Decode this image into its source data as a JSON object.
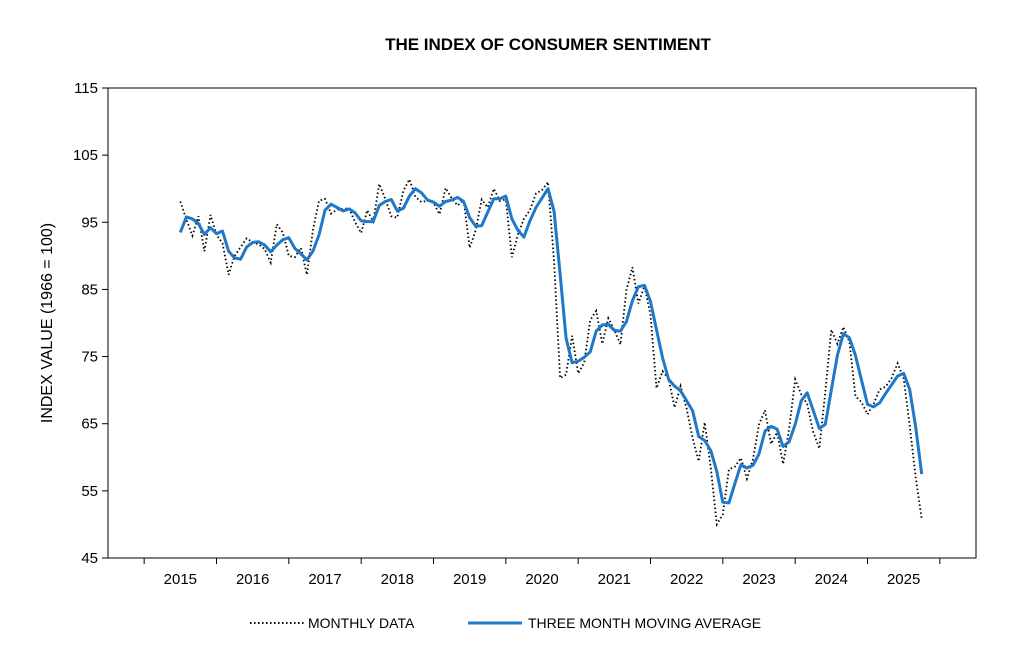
{
  "chart_data": {
    "type": "line",
    "title": "THE INDEX OF CONSUMER SENTIMENT",
    "ylabel": "INDEX VALUE (1966 = 100)",
    "xlabel": "",
    "ylim": [
      45,
      115
    ],
    "yticks": [
      45,
      55,
      65,
      75,
      85,
      95,
      105,
      115
    ],
    "xlim": [
      2014,
      2026
    ],
    "xticks": [
      2015,
      2016,
      2017,
      2018,
      2019,
      2020,
      2021,
      2022,
      2023,
      2024,
      2025
    ],
    "grid": false,
    "legend_position": "bottom",
    "colors": {
      "monthly": "#000000",
      "average": "#1f78c8"
    },
    "series": [
      {
        "name": "MONTHLY DATA",
        "style": "dotted",
        "x_start": 2015.0,
        "x_step": 0.0833333,
        "values": [
          98.1,
          95.4,
          93.0,
          95.9,
          90.7,
          96.1,
          93.1,
          91.9,
          87.2,
          90.0,
          91.3,
          92.6,
          92.0,
          91.7,
          91.0,
          89.0,
          94.7,
          93.5,
          90.0,
          89.8,
          91.2,
          87.2,
          93.8,
          98.2,
          98.5,
          96.3,
          96.9,
          97.0,
          97.1,
          95.0,
          93.4,
          96.8,
          95.1,
          100.7,
          98.5,
          95.9,
          95.7,
          99.7,
          101.4,
          98.8,
          98.0,
          98.2,
          97.9,
          96.2,
          100.1,
          98.6,
          97.5,
          98.3,
          91.2,
          93.8,
          98.4,
          97.2,
          100.0,
          98.2,
          98.4,
          89.8,
          93.2,
          95.5,
          96.8,
          99.3,
          99.8,
          101.0,
          89.1,
          71.8,
          72.3,
          78.1,
          72.5,
          74.1,
          80.4,
          81.8,
          76.9,
          80.7,
          79.0,
          76.8,
          84.9,
          88.3,
          82.9,
          85.5,
          81.2,
          70.3,
          72.8,
          71.7,
          67.4,
          70.6,
          67.2,
          62.8,
          59.4,
          65.2,
          58.4,
          50.0,
          51.5,
          58.2,
          58.6,
          59.9,
          56.8,
          59.7,
          64.9,
          67.0,
          62.0,
          63.7,
          59.0,
          64.2,
          71.6,
          69.4,
          67.9,
          63.8,
          61.3,
          69.7,
          79.0,
          76.9,
          79.4,
          77.2,
          69.1,
          68.2,
          66.4,
          67.9,
          70.1,
          70.5,
          71.8,
          74.0,
          71.7,
          64.7,
          57.0,
          50.8
        ]
      },
      {
        "name": "THREE MONTH MOVING AVERAGE",
        "style": "solid",
        "x_start": 2015.0,
        "x_step": 0.0833333,
        "values": [
          93.5,
          95.8,
          95.5,
          94.8,
          93.2,
          94.2,
          93.3,
          93.7,
          90.7,
          89.7,
          89.5,
          91.3,
          92.0,
          92.1,
          91.6,
          90.6,
          91.6,
          92.4,
          92.7,
          91.1,
          90.3,
          89.4,
          90.7,
          93.1,
          96.8,
          97.7,
          97.2,
          96.7,
          97.0,
          96.4,
          95.2,
          95.1,
          95.1,
          97.5,
          98.1,
          98.4,
          96.7,
          97.1,
          98.9,
          100.0,
          99.4,
          98.3,
          98.0,
          97.4,
          98.1,
          98.3,
          98.7,
          98.1,
          95.7,
          94.4,
          94.5,
          96.5,
          98.5,
          98.5,
          98.9,
          95.5,
          93.8,
          92.8,
          95.2,
          97.2,
          98.6,
          100.0,
          96.6,
          87.3,
          77.7,
          74.1,
          74.3,
          74.9,
          75.7,
          78.8,
          79.7,
          79.8,
          78.9,
          78.8,
          80.2,
          83.3,
          85.4,
          85.6,
          83.2,
          79.0,
          74.8,
          71.6,
          70.6,
          69.9,
          68.4,
          66.9,
          63.1,
          62.5,
          61.0,
          57.9,
          53.3,
          53.2,
          56.1,
          58.9,
          58.4,
          58.8,
          60.5,
          63.9,
          64.6,
          64.2,
          61.6,
          62.3,
          64.9,
          68.4,
          69.6,
          67.0,
          64.3,
          64.9,
          70.0,
          75.2,
          78.4,
          77.8,
          75.2,
          71.5,
          67.9,
          67.5,
          68.1,
          69.5,
          70.8,
          72.1,
          72.5,
          70.1,
          64.5,
          57.5
        ]
      }
    ]
  }
}
